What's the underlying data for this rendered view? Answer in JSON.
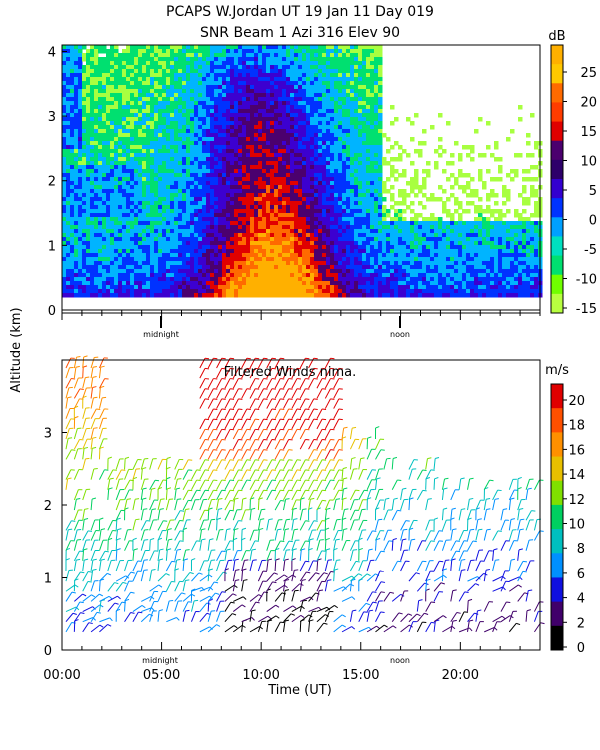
{
  "title_line1": "PCAPS W.Jordan UT  19 Jan 11 Day 019",
  "title_line2": "SNR Beam 1 Azi 316 Elev 90",
  "ylabel": "Altitude (km)",
  "xlabel": "Time (UT)",
  "markers": {
    "midnight": "midnight",
    "noon": "noon"
  },
  "chart_data": [
    {
      "type": "heatmap",
      "name": "snr-panel",
      "title": "SNR Beam 1 Azi 316 Elev 90",
      "ylim": [
        0,
        4.1
      ],
      "yticks": [
        "0",
        "1",
        "2",
        "3",
        "4"
      ],
      "xlim": [
        0,
        24
      ],
      "colorbar": {
        "unit": "dB",
        "ticks": [
          "25",
          "20",
          "15",
          "10",
          "5",
          "0",
          "-5",
          "-10",
          "-15"
        ],
        "colors": [
          "#ff9a00",
          "#ffc800",
          "#ff8000",
          "#ff3c00",
          "#e00000",
          "#4b006e",
          "#2d006a",
          "#3300d0",
          "#0032ff",
          "#00a0ff",
          "#00e0c0",
          "#00e070",
          "#70ff00",
          "#b8ff40"
        ]
      }
    },
    {
      "type": "scatter",
      "name": "winds-panel",
      "title": "Filtered Winds nima.",
      "ylim": [
        0,
        4
      ],
      "yticks": [
        "0",
        "1",
        "2",
        "3"
      ],
      "xlim": [
        0,
        24
      ],
      "xticks": [
        "00:00",
        "05:00",
        "10:00",
        "15:00",
        "20:00"
      ],
      "colorbar": {
        "unit": "m/s",
        "ticks": [
          "20",
          "18",
          "16",
          "14",
          "12",
          "10",
          "8",
          "6",
          "4",
          "2",
          "0"
        ],
        "colors": [
          "#000000",
          "#40006a",
          "#1010e0",
          "#0090ff",
          "#00c0c0",
          "#00d060",
          "#80e000",
          "#e8c000",
          "#ff9000",
          "#ff5000",
          "#e00000"
        ]
      }
    }
  ]
}
